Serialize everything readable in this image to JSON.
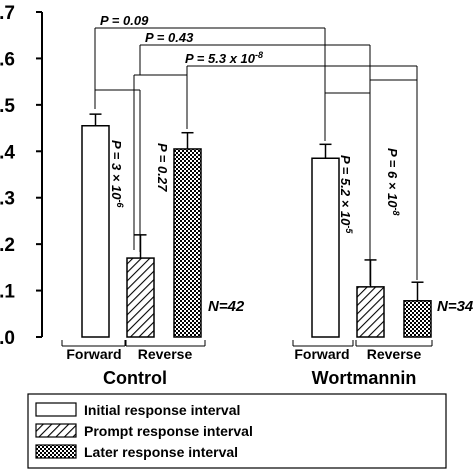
{
  "chart_data": {
    "type": "bar",
    "ylim": [
      0,
      0.7
    ],
    "yticks": [
      {
        "value": 0.7,
        "label": ".7"
      },
      {
        "value": 0.6,
        "label": ".6"
      },
      {
        "value": 0.5,
        "label": ".5"
      },
      {
        "value": 0.4,
        "label": ".4"
      },
      {
        "value": 0.3,
        "label": ".3"
      },
      {
        "value": 0.2,
        "label": ".2"
      },
      {
        "value": 0.1,
        "label": ".1"
      },
      {
        "value": 0.0,
        "label": ".0"
      }
    ],
    "groups": [
      {
        "name": "Control",
        "conditions": [
          "Forward",
          "Reverse"
        ],
        "n_label": "N=42",
        "bars": [
          {
            "series": "initial",
            "value": 0.455,
            "error": 0.025
          },
          {
            "series": "prompt",
            "value": 0.17,
            "error": 0.05
          },
          {
            "series": "later",
            "value": 0.405,
            "error": 0.035
          }
        ],
        "within_p": [
          {
            "text": "P = 3 × 10",
            "sup": "-6"
          },
          {
            "text": "P = 0.27",
            "sup": ""
          }
        ]
      },
      {
        "name": "Wortmannin",
        "conditions": [
          "Forward",
          "Reverse"
        ],
        "n_label": "N=34",
        "bars": [
          {
            "series": "initial",
            "value": 0.385,
            "error": 0.03
          },
          {
            "series": "prompt",
            "value": 0.108,
            "error": 0.058
          },
          {
            "series": "later",
            "value": 0.078,
            "error": 0.04
          }
        ],
        "within_p": [
          {
            "text": "P = 5.2 × 10",
            "sup": "-5"
          },
          {
            "text": "P = 6 × 10",
            "sup": "-8"
          }
        ]
      }
    ],
    "between_p": [
      {
        "text": "P = 0.09",
        "sup": ""
      },
      {
        "text": "P = 0.43",
        "sup": ""
      },
      {
        "text": "P = 5.3 x 10",
        "sup": "-8"
      }
    ],
    "legend": {
      "placement": "bottom",
      "entries": [
        {
          "series": "initial",
          "label": "Initial response interval"
        },
        {
          "series": "prompt",
          "label": "Prompt response interval"
        },
        {
          "series": "later",
          "label": "Later response interval"
        }
      ]
    }
  }
}
